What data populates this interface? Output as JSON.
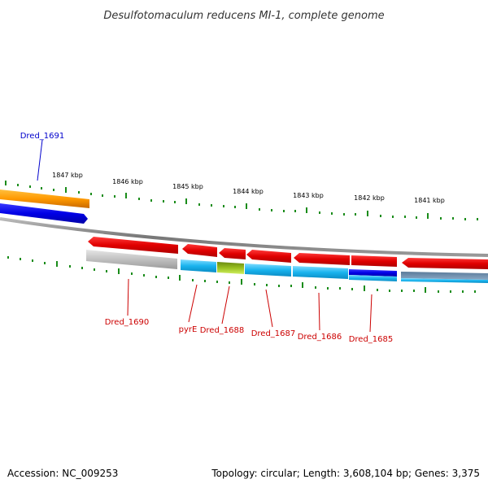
{
  "title": "Desulfotomaculum reducens MI-1, complete genome",
  "ticks": [
    "1847 kbp",
    "1846 kbp",
    "1845 kbp",
    "1844 kbp",
    "1843 kbp",
    "1842 kbp",
    "1841 kbp"
  ],
  "gene_labels": {
    "dred_1691": "Dred_1691",
    "dred_1690": "Dred_1690",
    "pyre": "pyrE",
    "dred_1688": "Dred_1688",
    "dred_1687": "Dred_1687",
    "dred_1686": "Dred_1686",
    "dred_1685": "Dred_1685"
  },
  "footer": {
    "accession": "Accession: NC_009253",
    "topology": "Topology: circular; Length: 3,608,104 bp; Genes: 3,375"
  },
  "colors": {
    "forward_label": "#0000cc",
    "reverse_label": "#cc0000",
    "tick_green": "#1a8c1a",
    "backbone": "#888888",
    "gene_red": "#ee0000",
    "gene_blue": "#0000ee",
    "gene_orange": "#ff9900",
    "gene_cyan": "#19b4ee",
    "gene_grey": "#b4b4b4",
    "gene_olive": "#7a9a1a"
  }
}
